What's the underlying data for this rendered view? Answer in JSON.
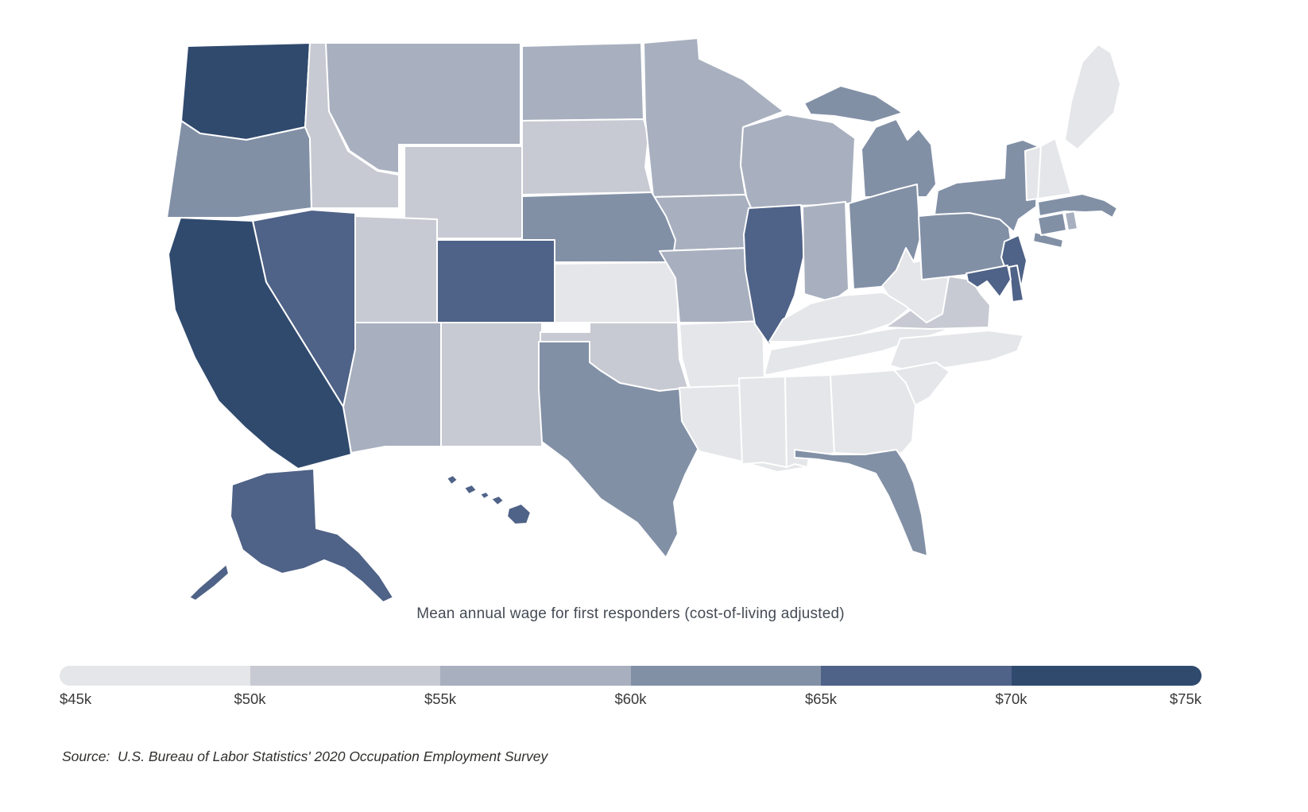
{
  "page": {
    "background": "#ffffff"
  },
  "legend": {
    "title": "Mean annual wage for first responders (cost-of-living adjusted)",
    "ticks": [
      "$45k",
      "$50k",
      "$55k",
      "$60k",
      "$65k",
      "$70k",
      "$75k"
    ],
    "colors": [
      "#e5e6e9",
      "#c7cad2",
      "#a8b0bf",
      "#8290a6",
      "#4f6287",
      "#304a6e"
    ]
  },
  "source": {
    "text": "Source:  U.S. Bureau of Labor Statistics' 2020 Occupation Employment Survey"
  },
  "chart_data": {
    "type": "choropleth",
    "region": "United States",
    "title": "Mean annual wage for first responders (cost-of-living adjusted)",
    "unit": "USD thousands (annual wage)",
    "domain": [
      45,
      75
    ],
    "bucket_thresholds": [
      50,
      55,
      60,
      65,
      70
    ],
    "legend_ticks": [
      "$45k",
      "$50k",
      "$55k",
      "$60k",
      "$65k",
      "$70k",
      "$75k"
    ],
    "source": "Source:  U.S. Bureau of Labor Statistics' 2020 Occupation Employment Survey",
    "states": [
      {
        "id": "WA",
        "name": "Washington",
        "value": 73
      },
      {
        "id": "OR",
        "name": "Oregon",
        "value": 61
      },
      {
        "id": "ID",
        "name": "Idaho",
        "value": 51
      },
      {
        "id": "MT",
        "name": "Montana",
        "value": 57
      },
      {
        "id": "WY",
        "name": "Wyoming",
        "value": 52
      },
      {
        "id": "UT",
        "name": "Utah",
        "value": 52
      },
      {
        "id": "CO",
        "name": "Colorado",
        "value": 67
      },
      {
        "id": "NV",
        "name": "Nevada",
        "value": 66
      },
      {
        "id": "CA",
        "name": "California",
        "value": 72
      },
      {
        "id": "AZ",
        "name": "Arizona",
        "value": 57
      },
      {
        "id": "NM",
        "name": "New Mexico",
        "value": 52
      },
      {
        "id": "ND",
        "name": "North Dakota",
        "value": 57
      },
      {
        "id": "SD",
        "name": "South Dakota",
        "value": 52
      },
      {
        "id": "MN",
        "name": "Minnesota",
        "value": 58
      },
      {
        "id": "WI",
        "name": "Wisconsin",
        "value": 59
      },
      {
        "id": "MI",
        "name": "Michigan",
        "value": 60
      },
      {
        "id": "IA",
        "name": "Iowa",
        "value": 58
      },
      {
        "id": "NE",
        "name": "Nebraska",
        "value": 61
      },
      {
        "id": "KS",
        "name": "Kansas",
        "value": 49
      },
      {
        "id": "OK",
        "name": "Oklahoma",
        "value": 52
      },
      {
        "id": "TX",
        "name": "Texas",
        "value": 62
      },
      {
        "id": "MO",
        "name": "Missouri",
        "value": 57
      },
      {
        "id": "AR",
        "name": "Arkansas",
        "value": 47
      },
      {
        "id": "LA",
        "name": "Louisiana",
        "value": 47
      },
      {
        "id": "IL",
        "name": "Illinois",
        "value": 68
      },
      {
        "id": "IN",
        "name": "Indiana",
        "value": 56
      },
      {
        "id": "OH",
        "name": "Ohio",
        "value": 63
      },
      {
        "id": "KY",
        "name": "Kentucky",
        "value": 47
      },
      {
        "id": "TN",
        "name": "Tennessee",
        "value": 47
      },
      {
        "id": "MS",
        "name": "Mississippi",
        "value": 46
      },
      {
        "id": "AL",
        "name": "Alabama",
        "value": 47
      },
      {
        "id": "GA",
        "name": "Georgia",
        "value": 47
      },
      {
        "id": "NC",
        "name": "North Carolina",
        "value": 47
      },
      {
        "id": "SC",
        "name": "South Carolina",
        "value": 47
      },
      {
        "id": "VA",
        "name": "Virginia",
        "value": 53
      },
      {
        "id": "WV",
        "name": "West Virginia",
        "value": 48
      },
      {
        "id": "FL",
        "name": "Florida",
        "value": 61
      },
      {
        "id": "PA",
        "name": "Pennsylvania",
        "value": 62
      },
      {
        "id": "NY",
        "name": "New York",
        "value": 64
      },
      {
        "id": "VT",
        "name": "Vermont",
        "value": 48
      },
      {
        "id": "NH",
        "name": "New Hampshire",
        "value": 48
      },
      {
        "id": "ME",
        "name": "Maine",
        "value": 48
      },
      {
        "id": "MA",
        "name": "Massachusetts",
        "value": 64
      },
      {
        "id": "CT",
        "name": "Connecticut",
        "value": 63
      },
      {
        "id": "RI",
        "name": "Rhode Island",
        "value": 59
      },
      {
        "id": "NJ",
        "name": "New Jersey",
        "value": 69
      },
      {
        "id": "DE",
        "name": "Delaware",
        "value": 69
      },
      {
        "id": "MD",
        "name": "Maryland",
        "value": 66
      },
      {
        "id": "AK",
        "name": "Alaska",
        "value": 66
      },
      {
        "id": "HI",
        "name": "Hawaii",
        "value": 65
      }
    ]
  }
}
